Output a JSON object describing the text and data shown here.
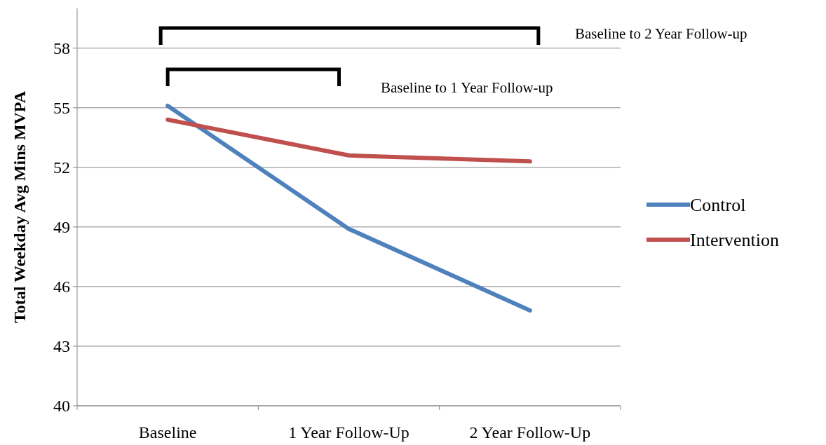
{
  "chart_data": {
    "type": "line",
    "ylabel": "Total Weekday Avg Mins MVPA",
    "categories": [
      "Baseline",
      "1 Year Follow-Up",
      "2 Year Follow-Up"
    ],
    "series": [
      {
        "name": "Control",
        "color": "#4f81bd",
        "values": [
          55.1,
          48.9,
          44.8
        ]
      },
      {
        "name": "Intervention",
        "color": "#c0504d",
        "values": [
          54.4,
          52.6,
          52.3
        ]
      }
    ],
    "ylim": [
      40,
      60
    ],
    "yticks": [
      40,
      43,
      46,
      49,
      52,
      55,
      58
    ],
    "grid": "y",
    "legend": "right",
    "marker": "none",
    "line_style": "solid",
    "annotations": [
      "Baseline to 2 Year Follow-up",
      "Baseline to 1 Year Follow-up"
    ]
  }
}
